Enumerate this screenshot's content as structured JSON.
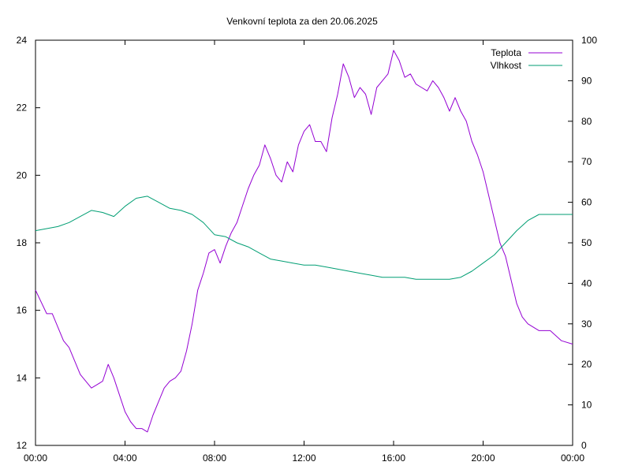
{
  "chart_data": {
    "type": "line",
    "title": "Venkovní teplota za den 20.06.2025",
    "x_ticks": [
      "00:00",
      "04:00",
      "08:00",
      "12:00",
      "16:00",
      "20:00",
      "00:00"
    ],
    "x_range_hours": [
      0,
      24
    ],
    "y_left": {
      "range": [
        12,
        24
      ],
      "ticks": [
        12,
        14,
        16,
        18,
        20,
        22,
        24
      ]
    },
    "y_right": {
      "range": [
        0,
        100
      ],
      "ticks": [
        0,
        10,
        20,
        30,
        40,
        50,
        60,
        70,
        80,
        90,
        100
      ]
    },
    "grid": false,
    "legend_position": "top-right",
    "series": [
      {
        "name": "Teplota",
        "axis": "left",
        "color": "#9400d3",
        "x": [
          0,
          0.5,
          0.75,
          1,
          1.25,
          1.5,
          1.75,
          2,
          2.5,
          2.75,
          3,
          3.25,
          3.5,
          3.75,
          4,
          4.25,
          4.5,
          4.75,
          5,
          5.25,
          5.5,
          5.75,
          6,
          6.25,
          6.5,
          6.75,
          7,
          7.25,
          7.5,
          7.75,
          8,
          8.25,
          8.5,
          8.75,
          9,
          9.25,
          9.5,
          9.75,
          10,
          10.25,
          10.5,
          10.75,
          11,
          11.25,
          11.5,
          11.75,
          12,
          12.25,
          12.5,
          12.75,
          13,
          13.25,
          13.5,
          13.75,
          14,
          14.25,
          14.5,
          14.75,
          15,
          15.25,
          15.5,
          15.75,
          16,
          16.25,
          16.5,
          16.75,
          17,
          17.25,
          17.5,
          17.75,
          18,
          18.25,
          18.5,
          18.75,
          19,
          19.25,
          19.5,
          19.75,
          20,
          20.25,
          20.5,
          20.75,
          21,
          21.25,
          21.5,
          21.75,
          22,
          22.5,
          23,
          23.5,
          24
        ],
        "y": [
          16.6,
          15.9,
          15.9,
          15.5,
          15.1,
          14.9,
          14.5,
          14.1,
          13.7,
          13.8,
          13.9,
          14.4,
          14.0,
          13.5,
          13.0,
          12.7,
          12.5,
          12.5,
          12.4,
          12.9,
          13.3,
          13.7,
          13.9,
          14.0,
          14.2,
          14.8,
          15.6,
          16.6,
          17.1,
          17.7,
          17.8,
          17.4,
          17.9,
          18.3,
          18.6,
          19.1,
          19.6,
          20.0,
          20.3,
          20.9,
          20.5,
          20.0,
          19.8,
          20.4,
          20.1,
          20.9,
          21.3,
          21.5,
          21.0,
          21.0,
          20.7,
          21.7,
          22.4,
          23.3,
          22.9,
          22.3,
          22.6,
          22.4,
          21.8,
          22.6,
          22.8,
          23.0,
          23.7,
          23.4,
          22.9,
          23.0,
          22.7,
          22.6,
          22.5,
          22.8,
          22.6,
          22.3,
          21.9,
          22.3,
          21.9,
          21.6,
          21.0,
          20.6,
          20.1,
          19.4,
          18.7,
          18.0,
          17.6,
          16.9,
          16.2,
          15.8,
          15.6,
          15.4,
          15.4,
          15.1,
          15.0
        ]
      },
      {
        "name": "Vlhkost",
        "axis": "right",
        "color": "#009e73",
        "x": [
          0,
          0.5,
          1,
          1.5,
          2,
          2.5,
          3,
          3.5,
          4,
          4.5,
          5,
          5.5,
          6,
          6.5,
          7,
          7.5,
          8,
          8.5,
          9,
          9.5,
          10,
          10.5,
          11,
          11.5,
          12,
          12.5,
          13,
          13.5,
          14,
          14.5,
          15,
          15.5,
          16,
          16.5,
          17,
          17.5,
          18,
          18.5,
          19,
          19.5,
          20,
          20.5,
          21,
          21.5,
          22,
          22.5,
          23,
          23.5,
          24
        ],
        "y": [
          53,
          53.5,
          54,
          55,
          56.5,
          58,
          57.5,
          56.5,
          59,
          61,
          61.5,
          60,
          58.5,
          58,
          57,
          55,
          52,
          51.5,
          50,
          49,
          47.5,
          46,
          45.5,
          45,
          44.5,
          44.5,
          44,
          43.5,
          43,
          42.5,
          42,
          41.5,
          41.5,
          41.5,
          41,
          41,
          41,
          41,
          41.5,
          43,
          45,
          47,
          50,
          53,
          55.5,
          57,
          57,
          57,
          57
        ]
      }
    ]
  }
}
